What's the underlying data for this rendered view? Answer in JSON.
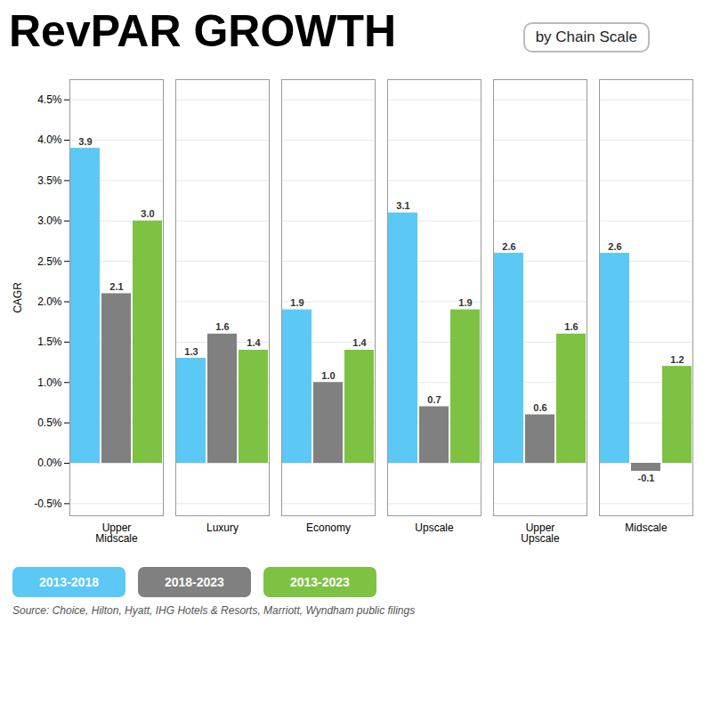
{
  "chart_data": {
    "type": "bar",
    "title": "RevPAR GROWTH",
    "subtitle": "by Chain Scale",
    "ylabel": "CAGR",
    "source": "Source: Choice, Hilton, Hyatt, IHG Hotels & Resorts, Marriott, Wyndham public filings",
    "categories": [
      "Upper\nMidscale",
      "Luxury",
      "Economy",
      "Upscale",
      "Upper\nUpscale",
      "Midscale"
    ],
    "series": [
      {
        "name": "2013-2018",
        "color": "#5BC8F5",
        "values": [
          3.9,
          1.3,
          1.9,
          3.1,
          2.6,
          2.6
        ],
        "value_labels": [
          "3.9",
          "1.3",
          "1.9",
          "3.1",
          "2.6",
          "2.6"
        ]
      },
      {
        "name": "2018-2023",
        "color": "#808080",
        "values": [
          2.1,
          1.6,
          1.0,
          0.7,
          0.6,
          -0.1
        ],
        "value_labels": [
          "2.1",
          "1.6",
          "1.0",
          "0.7",
          "0.6",
          "-0.1"
        ]
      },
      {
        "name": "2013-2023",
        "color": "#7DC242",
        "values": [
          3.0,
          1.4,
          1.4,
          1.9,
          1.6,
          1.2
        ],
        "value_labels": [
          "3.0",
          "1.4",
          "1.4",
          "1.9",
          "1.6",
          "1.2"
        ]
      }
    ],
    "ylim": [
      -0.65,
      4.75
    ],
    "yticks": [
      {
        "value": -0.5,
        "label": "-0.5%"
      },
      {
        "value": 0.0,
        "label": "0.0%"
      },
      {
        "value": 0.5,
        "label": "0.5%"
      },
      {
        "value": 1.0,
        "label": "1.0%"
      },
      {
        "value": 1.5,
        "label": "1.5%"
      },
      {
        "value": 2.0,
        "label": "2.0%"
      },
      {
        "value": 2.5,
        "label": "2.5%"
      },
      {
        "value": 3.0,
        "label": "3.0%"
      },
      {
        "value": 3.5,
        "label": "3.5%"
      },
      {
        "value": 4.0,
        "label": "4.0%"
      },
      {
        "value": 4.5,
        "label": "4.5%"
      }
    ],
    "grid": true,
    "legend": "bottom",
    "data_labels": true
  }
}
